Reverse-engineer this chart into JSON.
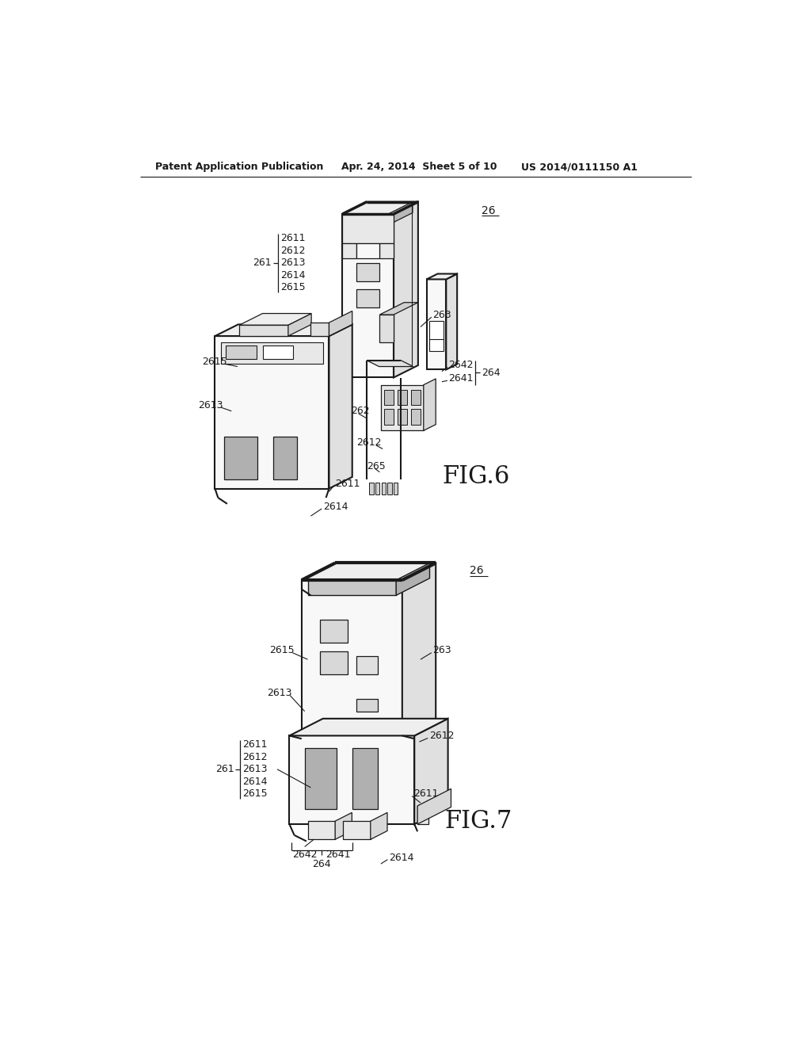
{
  "page_bg": "#ffffff",
  "header_left": "Patent Application Publication",
  "header_mid": "Apr. 24, 2014  Sheet 5 of 10",
  "header_right": "US 2014/0111150 A1",
  "fig6_label": "FIG.6",
  "fig7_label": "FIG.7",
  "line_color": "#1a1a1a",
  "lw_main": 1.5,
  "lw_thin": 0.8,
  "fc_front": "#f8f8f8",
  "fc_side": "#e0e0e0",
  "fc_top": "#eeeeee",
  "fc_dark": "#c8c8c8",
  "fc_slot": "#b0b0b0"
}
